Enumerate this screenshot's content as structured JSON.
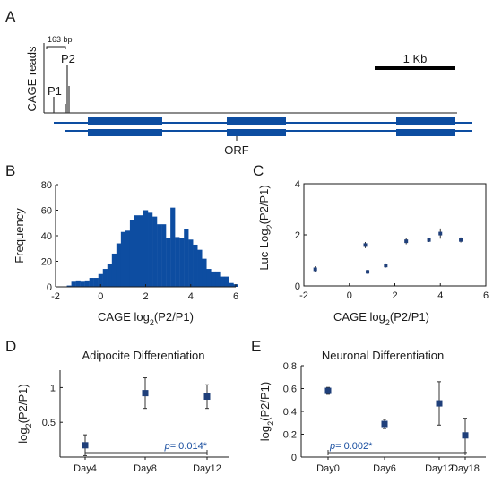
{
  "panels": {
    "A": {
      "letter": "A",
      "ylabel": "CAGE reads",
      "bracket_label": "163 bp",
      "peak_labels": [
        "P1",
        "P2"
      ],
      "scale_label": "1 Kb",
      "orf_label": "ORF"
    },
    "B": {
      "letter": "B"
    },
    "C": {
      "letter": "C"
    },
    "D": {
      "letter": "D"
    },
    "E": {
      "letter": "E"
    }
  },
  "colors": {
    "accent": "#0d4da1",
    "text": "#1a1a1a",
    "pvalue": "#1a4fa0"
  },
  "chart_data": [
    {
      "id": "B",
      "type": "bar",
      "xlabel": "CAGE log2(P2/P1)",
      "ylabel": "Frequency",
      "xlim": [
        -2,
        6
      ],
      "ylim": [
        0,
        80
      ],
      "xticks": [
        -2,
        0,
        2,
        4,
        6
      ],
      "yticks": [
        0,
        20,
        40,
        60,
        80
      ],
      "bin_start": -1.5,
      "bin_width": 0.2,
      "values": [
        1,
        4,
        5,
        4,
        5,
        7,
        7,
        10,
        14,
        18,
        26,
        34,
        43,
        44,
        52,
        56,
        56,
        60,
        58,
        55,
        49,
        49,
        38,
        62,
        39,
        38,
        45,
        37,
        33,
        29,
        22,
        14,
        12,
        12,
        8,
        8,
        3,
        2
      ]
    },
    {
      "id": "C",
      "type": "scatter",
      "xlabel": "CAGE log2(P2/P1)",
      "ylabel": "Luc Log2(P2/P1)",
      "xlim": [
        -2,
        6
      ],
      "ylim": [
        0,
        4
      ],
      "xticks": [
        -2,
        0,
        2,
        4,
        6
      ],
      "yticks": [
        0,
        2,
        4
      ],
      "points": [
        {
          "x": -1.5,
          "y": 0.65,
          "err": 0.12
        },
        {
          "x": 0.7,
          "y": 1.6,
          "err": 0.12
        },
        {
          "x": 0.8,
          "y": 0.55,
          "err": 0.08
        },
        {
          "x": 1.6,
          "y": 0.8,
          "err": 0.08
        },
        {
          "x": 2.5,
          "y": 1.75,
          "err": 0.12
        },
        {
          "x": 3.5,
          "y": 1.8,
          "err": 0.08
        },
        {
          "x": 4.0,
          "y": 2.05,
          "err": 0.2
        },
        {
          "x": 4.9,
          "y": 1.8,
          "err": 0.1
        }
      ]
    },
    {
      "id": "D",
      "type": "scatter",
      "title": "Adipocite Differentiation",
      "ylabel": "log2(P2/P1)",
      "categories": [
        "Day4",
        "Day8",
        "Day12"
      ],
      "values": [
        0.17,
        0.92,
        0.87
      ],
      "errors": [
        0.15,
        0.22,
        0.17
      ],
      "ylim": [
        0,
        1.25
      ],
      "yticks": [
        0.5,
        1
      ],
      "pvalue": {
        "label": "p",
        "text": "= 0.014*",
        "from": 0,
        "to": 2
      }
    },
    {
      "id": "E",
      "type": "scatter",
      "title": "Neuronal Differentiation",
      "ylabel": "log2(P2/P1)",
      "categories": [
        "Day0",
        "Day6",
        "Day12",
        "Day18"
      ],
      "values": [
        0.58,
        0.29,
        0.47,
        0.19
      ],
      "errors": [
        0.03,
        0.04,
        0.19,
        0.15
      ],
      "ylim": [
        0,
        0.8
      ],
      "yticks": [
        0,
        0.2,
        0.4,
        0.6,
        0.8
      ],
      "pvalue": {
        "label": "p",
        "text": "= 0.002*",
        "from": 0,
        "to": 3
      }
    }
  ]
}
